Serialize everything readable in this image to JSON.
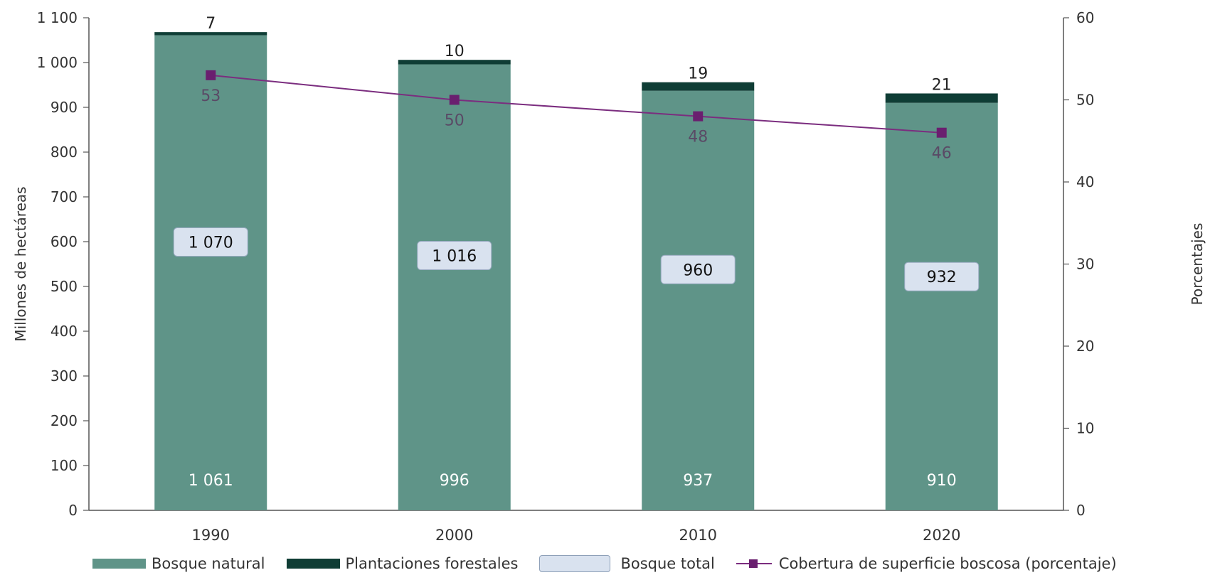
{
  "chart_data": {
    "type": "bar",
    "categories": [
      "1990",
      "2000",
      "2010",
      "2020"
    ],
    "series": [
      {
        "name": "Bosque natural",
        "values": [
          1061,
          996,
          937,
          910
        ],
        "labels": [
          "1 061",
          "996",
          "937",
          "910"
        ],
        "color": "#5f9488"
      },
      {
        "name": "Plantaciones forestales",
        "values": [
          7,
          10,
          19,
          21
        ],
        "labels": [
          "7",
          "10",
          "19",
          "21"
        ],
        "color": "#0f3d35"
      },
      {
        "name": "Bosque total",
        "values": [
          1070,
          1016,
          960,
          932
        ],
        "labels": [
          "1 070",
          "1 016",
          "960",
          "932"
        ],
        "color": "#d9e2ef"
      },
      {
        "name": "Cobertura de superficie boscosa (porcentaje)",
        "values": [
          53,
          50,
          48,
          46
        ],
        "labels": [
          "53",
          "50",
          "48",
          "46"
        ],
        "color": "#7b2d7f",
        "axis": "right"
      }
    ],
    "ylabel": "Millones de hectáreas",
    "y2label": "Porcentajes",
    "ylim": [
      0,
      1100
    ],
    "y2lim": [
      0,
      60
    ],
    "yticks": [
      "0",
      "100",
      "200",
      "300",
      "400",
      "500",
      "600",
      "700",
      "800",
      "900",
      "1 000",
      "1 100"
    ],
    "y2ticks": [
      "0",
      "10",
      "20",
      "30",
      "40",
      "50",
      "60"
    ],
    "grid": false,
    "legend_position": "bottom"
  }
}
